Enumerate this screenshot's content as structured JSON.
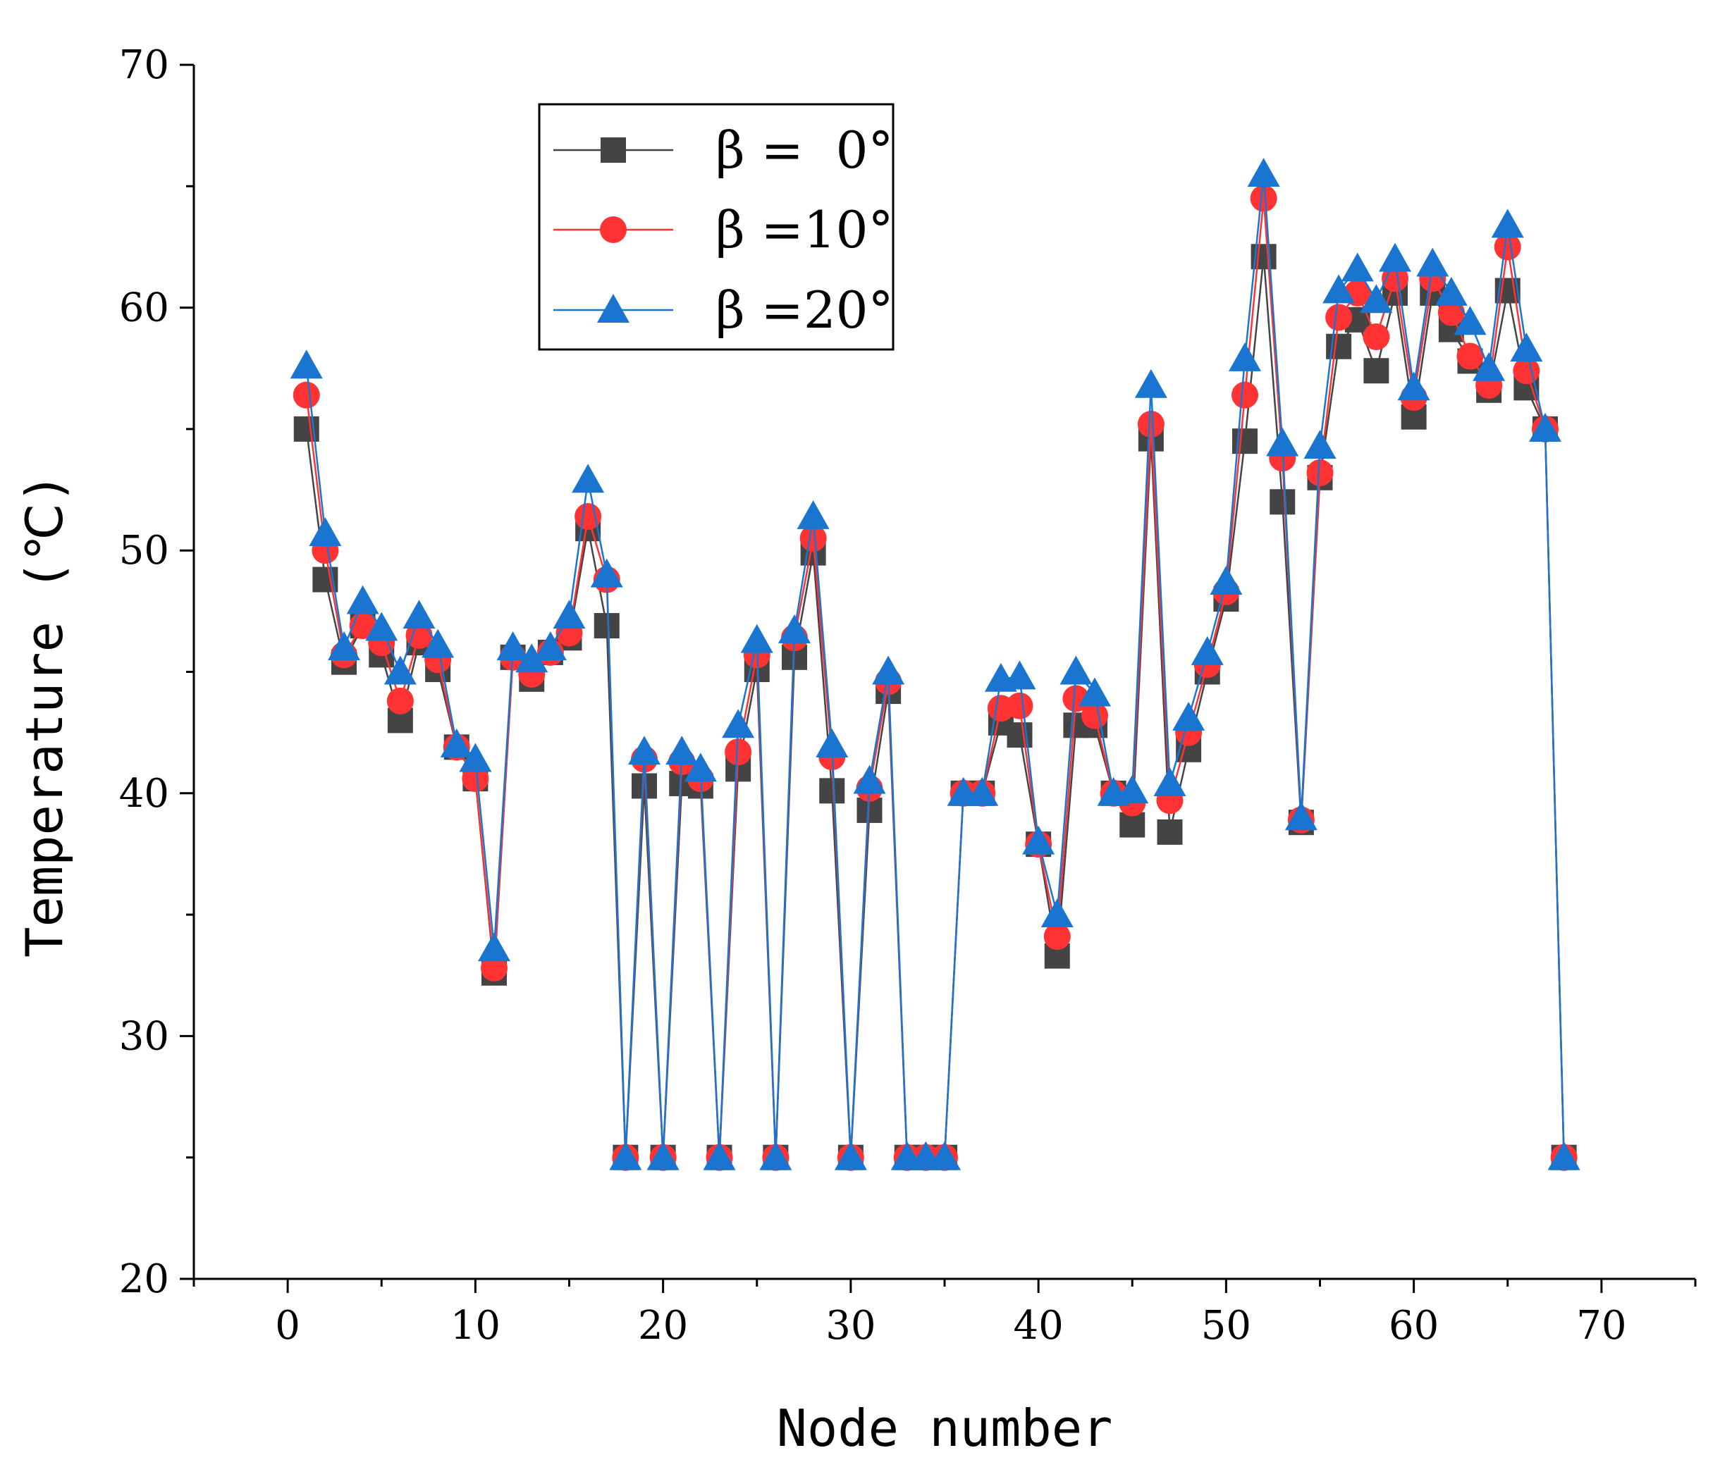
{
  "chart_data": {
    "type": "line",
    "title": "",
    "xlabel": "Node number",
    "ylabel": "Temperature (℃)",
    "xlim": [
      -5,
      75
    ],
    "ylim": [
      20,
      70
    ],
    "x_ticks": [
      0,
      10,
      20,
      30,
      40,
      50,
      60,
      70
    ],
    "y_ticks": [
      20,
      30,
      40,
      50,
      60,
      70
    ],
    "legend_position": "top-left",
    "x": [
      1,
      2,
      3,
      4,
      5,
      6,
      7,
      8,
      9,
      10,
      11,
      12,
      13,
      14,
      15,
      16,
      17,
      18,
      19,
      20,
      21,
      22,
      23,
      24,
      25,
      26,
      27,
      28,
      29,
      30,
      31,
      32,
      33,
      34,
      35,
      36,
      37,
      38,
      39,
      40,
      41,
      42,
      43,
      44,
      45,
      46,
      47,
      48,
      49,
      50,
      51,
      52,
      53,
      54,
      55,
      56,
      57,
      58,
      59,
      60,
      61,
      62,
      63,
      64,
      65,
      66,
      67,
      68
    ],
    "series": [
      {
        "name": "β =  0°",
        "color": "#444444",
        "marker": "square",
        "values": [
          55.0,
          48.8,
          45.4,
          46.9,
          45.7,
          43.0,
          46.2,
          45.1,
          41.9,
          40.6,
          32.6,
          45.6,
          44.7,
          45.8,
          46.4,
          50.9,
          46.9,
          25.0,
          40.3,
          25.0,
          40.4,
          40.3,
          25.0,
          41.0,
          45.1,
          25.0,
          45.6,
          49.9,
          40.1,
          25.0,
          39.3,
          44.2,
          25.0,
          25.0,
          25.0,
          40.0,
          40.0,
          42.9,
          42.4,
          37.9,
          33.3,
          42.8,
          42.8,
          40.0,
          38.7,
          54.6,
          38.4,
          41.8,
          45.0,
          48.0,
          54.5,
          62.1,
          52.0,
          38.8,
          53.0,
          58.4,
          59.5,
          57.4,
          60.6,
          55.5,
          60.6,
          59.1,
          57.8,
          56.6,
          60.7,
          56.7,
          55.0,
          25.0
        ]
      },
      {
        "name": "β =10°",
        "color": "#ff3333",
        "marker": "circle",
        "values": [
          56.4,
          50.0,
          45.7,
          46.9,
          46.2,
          43.8,
          46.5,
          45.5,
          41.9,
          40.6,
          32.8,
          45.6,
          44.9,
          45.8,
          46.6,
          51.4,
          48.8,
          25.0,
          41.4,
          25.0,
          41.3,
          40.6,
          25.0,
          41.7,
          45.7,
          25.0,
          46.4,
          50.5,
          41.5,
          25.0,
          40.2,
          44.6,
          25.0,
          25.0,
          25.0,
          40.0,
          40.0,
          43.5,
          43.6,
          37.9,
          34.1,
          43.9,
          43.2,
          40.0,
          39.6,
          55.2,
          39.7,
          42.5,
          45.3,
          48.3,
          56.4,
          64.5,
          53.8,
          38.9,
          53.2,
          59.6,
          60.6,
          58.8,
          61.2,
          56.3,
          61.2,
          59.8,
          58.0,
          56.8,
          62.5,
          57.4,
          55.0,
          25.0
        ]
      },
      {
        "name": "β =20°",
        "color": "#1a75d1",
        "marker": "triangle",
        "values": [
          57.6,
          50.7,
          46.0,
          47.9,
          46.8,
          45.0,
          47.3,
          46.1,
          42.0,
          41.4,
          33.6,
          46.0,
          45.5,
          46.0,
          47.3,
          52.9,
          49.0,
          25.0,
          41.7,
          25.0,
          41.7,
          41.0,
          25.0,
          42.8,
          46.3,
          25.0,
          46.7,
          51.4,
          42.0,
          25.0,
          40.5,
          45.0,
          25.0,
          25.0,
          25.0,
          40.0,
          40.0,
          44.7,
          44.8,
          38.0,
          35.0,
          45.0,
          44.1,
          40.0,
          40.1,
          56.8,
          40.4,
          43.1,
          45.8,
          48.7,
          57.9,
          65.5,
          54.4,
          39.0,
          54.3,
          60.7,
          61.6,
          60.3,
          62.0,
          56.7,
          61.8,
          60.6,
          59.4,
          57.5,
          63.4,
          58.3,
          55.0,
          25.0
        ]
      }
    ]
  }
}
